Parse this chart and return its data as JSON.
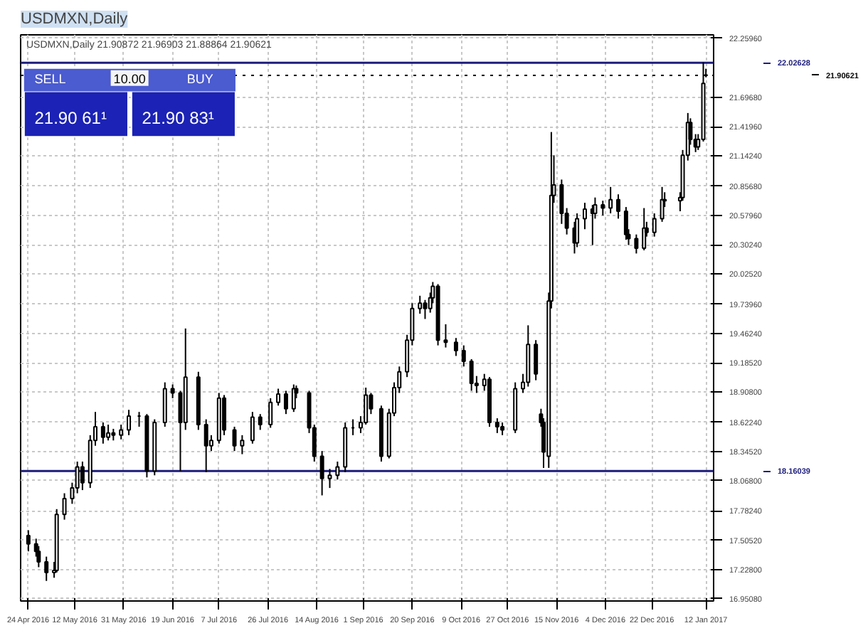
{
  "chart_data": {
    "type": "candlestick",
    "title": "USDMXN,Daily",
    "subtitle": "USDMXN,Daily  21.90872 21.96903 21.88864 21.90621",
    "annotations": [
      "SELL",
      "10.00",
      "BUY",
      "21.90 61¹",
      "21.90 83¹"
    ],
    "x": [
      "2016-04-24",
      "2016-04-27",
      "2016-04-28",
      "2016-05-01",
      "2016-05-04",
      "2016-05-05",
      "2016-05-08",
      "2016-05-11",
      "2016-05-13",
      "2016-05-15",
      "2016-05-18",
      "2016-05-20",
      "2016-05-23",
      "2016-05-25",
      "2016-05-27",
      "2016-05-30",
      "2016-06-02",
      "2016-06-06",
      "2016-06-09",
      "2016-06-12",
      "2016-06-16",
      "2016-06-19",
      "2016-06-22",
      "2016-06-24",
      "2016-06-29",
      "2016-07-02",
      "2016-07-04",
      "2016-07-07",
      "2016-07-09",
      "2016-07-13",
      "2016-07-16",
      "2016-07-20",
      "2016-07-23",
      "2016-07-27",
      "2016-07-30",
      "2016-08-02",
      "2016-08-05",
      "2016-08-06",
      "2016-08-11",
      "2016-08-13",
      "2016-08-16",
      "2016-08-19",
      "2016-08-22",
      "2016-08-25",
      "2016-08-28",
      "2016-08-31",
      "2016-09-02",
      "2016-09-04",
      "2016-09-08",
      "2016-09-11",
      "2016-09-13",
      "2016-09-15",
      "2016-09-18",
      "2016-09-20",
      "2016-09-23",
      "2016-09-25",
      "2016-09-27",
      "2016-09-28",
      "2016-09-30",
      "2016-10-03",
      "2016-10-07",
      "2016-10-10",
      "2016-10-13",
      "2016-10-15",
      "2016-10-18",
      "2016-10-20",
      "2016-10-23",
      "2016-10-25",
      "2016-10-30",
      "2016-11-02",
      "2016-11-04",
      "2016-11-07",
      "2016-11-09",
      "2016-11-10",
      "2016-11-12",
      "2016-11-13",
      "2016-11-14",
      "2016-11-17",
      "2016-11-19",
      "2016-11-22",
      "2016-11-23",
      "2016-11-26",
      "2016-11-29",
      "2016-11-30",
      "2016-12-03",
      "2016-12-06",
      "2016-12-09",
      "2016-12-12",
      "2016-12-13",
      "2016-12-16",
      "2016-12-19",
      "2016-12-20",
      "2016-12-23",
      "2016-12-26",
      "2016-12-27",
      "2017-01-02",
      "2017-01-03",
      "2017-01-05",
      "2017-01-06",
      "2017-01-08",
      "2017-01-09",
      "2017-01-11",
      "2017-01-12"
    ],
    "ohlc": [
      [
        17.55,
        17.6,
        17.4,
        17.47
      ],
      [
        17.47,
        17.52,
        17.35,
        17.4
      ],
      [
        17.4,
        17.45,
        17.25,
        17.3
      ],
      [
        17.3,
        17.35,
        17.12,
        17.2
      ],
      [
        17.2,
        17.3,
        17.15,
        17.22
      ],
      [
        17.22,
        17.8,
        17.2,
        17.75
      ],
      [
        17.75,
        17.95,
        17.7,
        17.9
      ],
      [
        17.9,
        18.05,
        17.85,
        18.0
      ],
      [
        18.0,
        18.25,
        17.95,
        18.2
      ],
      [
        18.2,
        18.25,
        17.98,
        18.05
      ],
      [
        18.05,
        18.5,
        18.0,
        18.45
      ],
      [
        18.45,
        18.72,
        18.4,
        18.58
      ],
      [
        18.58,
        18.62,
        18.42,
        18.48
      ],
      [
        18.48,
        18.6,
        18.45,
        18.52
      ],
      [
        18.52,
        18.56,
        18.45,
        18.5
      ],
      [
        18.5,
        18.6,
        18.46,
        18.55
      ],
      [
        18.55,
        18.74,
        18.5,
        18.68
      ],
      [
        18.68,
        18.72,
        18.58,
        18.68
      ],
      [
        18.68,
        18.7,
        18.1,
        18.16
      ],
      [
        18.16,
        18.65,
        18.12,
        18.62
      ],
      [
        18.62,
        19.0,
        18.58,
        18.94
      ],
      [
        18.94,
        18.98,
        18.85,
        18.9
      ],
      [
        18.9,
        18.92,
        18.16,
        18.62
      ],
      [
        18.62,
        19.51,
        18.55,
        19.05
      ],
      [
        19.05,
        19.1,
        18.55,
        18.6
      ],
      [
        18.6,
        18.65,
        18.15,
        18.4
      ],
      [
        18.4,
        18.5,
        18.35,
        18.45
      ],
      [
        18.45,
        18.9,
        18.42,
        18.85
      ],
      [
        18.85,
        18.88,
        18.5,
        18.55
      ],
      [
        18.55,
        18.58,
        18.35,
        18.4
      ],
      [
        18.4,
        18.5,
        18.32,
        18.45
      ],
      [
        18.45,
        18.72,
        18.42,
        18.67
      ],
      [
        18.67,
        18.7,
        18.55,
        18.6
      ],
      [
        18.6,
        18.85,
        18.57,
        18.81
      ],
      [
        18.81,
        18.94,
        18.78,
        18.89
      ],
      [
        18.89,
        18.92,
        18.7,
        18.75
      ],
      [
        18.75,
        18.98,
        18.72,
        18.94
      ],
      [
        18.94,
        18.97,
        18.85,
        18.9
      ],
      [
        18.9,
        18.92,
        18.52,
        18.57
      ],
      [
        18.57,
        18.6,
        18.25,
        18.3
      ],
      [
        18.3,
        18.35,
        17.93,
        18.09
      ],
      [
        18.09,
        18.18,
        18.0,
        18.12
      ],
      [
        18.12,
        18.25,
        18.08,
        18.2
      ],
      [
        18.2,
        18.62,
        18.15,
        18.57
      ],
      [
        18.57,
        18.65,
        18.5,
        18.57
      ],
      [
        18.57,
        18.68,
        18.52,
        18.62
      ],
      [
        18.62,
        18.95,
        18.6,
        18.88
      ],
      [
        18.88,
        18.9,
        18.7,
        18.75
      ],
      [
        18.75,
        18.78,
        18.25,
        18.3
      ],
      [
        18.3,
        18.75,
        18.28,
        18.71
      ],
      [
        18.71,
        19.0,
        18.68,
        18.95
      ],
      [
        18.95,
        19.15,
        18.9,
        19.1
      ],
      [
        19.1,
        19.45,
        19.05,
        19.4
      ],
      [
        19.4,
        19.75,
        19.35,
        19.7
      ],
      [
        19.7,
        19.82,
        19.65,
        19.75
      ],
      [
        19.75,
        19.78,
        19.6,
        19.7
      ],
      [
        19.7,
        19.85,
        19.66,
        19.8
      ],
      [
        19.8,
        19.95,
        19.75,
        19.91
      ],
      [
        19.91,
        19.93,
        19.35,
        19.4
      ],
      [
        19.4,
        19.55,
        19.33,
        19.38
      ],
      [
        19.38,
        19.42,
        19.25,
        19.3
      ],
      [
        19.3,
        19.35,
        19.15,
        19.2
      ],
      [
        19.2,
        19.22,
        18.92,
        18.99
      ],
      [
        18.99,
        19.06,
        18.9,
        18.97
      ],
      [
        18.97,
        19.08,
        18.92,
        19.03
      ],
      [
        19.03,
        19.05,
        18.58,
        18.62
      ],
      [
        18.62,
        18.66,
        18.52,
        18.58
      ],
      [
        18.58,
        18.62,
        18.5,
        18.55
      ],
      [
        18.55,
        19.0,
        18.52,
        18.94
      ],
      [
        18.94,
        19.08,
        18.9,
        19.0
      ],
      [
        19.0,
        19.54,
        18.96,
        19.36
      ],
      [
        19.36,
        19.4,
        19.02,
        19.08
      ],
      [
        18.7,
        18.75,
        18.58,
        18.62
      ],
      [
        18.62,
        18.66,
        18.19,
        18.34
      ],
      [
        18.3,
        19.85,
        18.19,
        19.77
      ],
      [
        19.77,
        21.37,
        19.7,
        20.77
      ],
      [
        20.77,
        21.15,
        20.7,
        20.87
      ],
      [
        20.87,
        20.92,
        20.5,
        20.6
      ],
      [
        20.6,
        20.65,
        20.4,
        20.46
      ],
      [
        20.46,
        20.52,
        20.22,
        20.32
      ],
      [
        20.32,
        20.6,
        20.28,
        20.55
      ],
      [
        20.55,
        20.7,
        20.45,
        20.64
      ],
      [
        20.64,
        20.68,
        20.3,
        20.6
      ],
      [
        20.6,
        20.75,
        20.55,
        20.68
      ],
      [
        20.68,
        20.72,
        20.58,
        20.65
      ],
      [
        20.65,
        20.85,
        20.6,
        20.73
      ],
      [
        20.73,
        20.78,
        20.55,
        20.62
      ],
      [
        20.62,
        20.66,
        20.35,
        20.4
      ],
      [
        20.4,
        20.45,
        20.3,
        20.36
      ],
      [
        20.36,
        20.4,
        20.22,
        20.27
      ],
      [
        20.27,
        20.65,
        20.25,
        20.46
      ],
      [
        20.46,
        20.52,
        20.38,
        20.42
      ],
      [
        20.42,
        20.6,
        20.38,
        20.55
      ],
      [
        20.55,
        20.85,
        20.52,
        20.73
      ],
      [
        20.73,
        20.8,
        20.66,
        20.72
      ],
      [
        20.72,
        20.8,
        20.62,
        20.75
      ],
      [
        20.75,
        21.2,
        20.72,
        21.15
      ],
      [
        21.15,
        21.55,
        21.1,
        21.46
      ],
      [
        21.46,
        21.5,
        21.25,
        21.3
      ],
      [
        21.3,
        21.35,
        21.18,
        21.23
      ],
      [
        21.23,
        21.35,
        21.2,
        21.3
      ],
      [
        21.3,
        22.03,
        21.28,
        21.83
      ],
      [
        21.90872,
        21.96903,
        21.88864,
        21.90621
      ]
    ],
    "xlim": [
      "2016-04-21",
      "2017-01-15"
    ],
    "ylim": [
      16.93,
      22.29
    ],
    "xticks": [
      {
        "value": "2016-04-24",
        "label": "24 Apr 2016"
      },
      {
        "value": "2016-05-12",
        "label": "12 May 2016"
      },
      {
        "value": "2016-05-31",
        "label": "31 May 2016"
      },
      {
        "value": "2016-06-19",
        "label": "19 Jun 2016"
      },
      {
        "value": "2016-07-07",
        "label": "7 Jul 2016"
      },
      {
        "value": "2016-07-26",
        "label": "26 Jul 2016"
      },
      {
        "value": "2016-08-14",
        "label": "14 Aug 2016"
      },
      {
        "value": "2016-09-01",
        "label": "1 Sep 2016"
      },
      {
        "value": "2016-09-20",
        "label": "20 Sep 2016"
      },
      {
        "value": "2016-10-09",
        "label": "9 Oct 2016"
      },
      {
        "value": "2016-10-27",
        "label": "27 Oct 2016"
      },
      {
        "value": "2016-11-15",
        "label": "15 Nov 2016"
      },
      {
        "value": "2016-12-04",
        "label": "4 Dec 2016"
      },
      {
        "value": "2016-12-22",
        "label": "22 Dec 2016"
      },
      {
        "value": "2017-01-12",
        "label": "12 Jan 2017"
      }
    ],
    "yticks": [
      {
        "value": 22.2596,
        "label": "22.25960"
      },
      {
        "value": 21.6968,
        "label": "21.69680"
      },
      {
        "value": 21.4196,
        "label": "21.41960"
      },
      {
        "value": 21.1424,
        "label": "21.14240"
      },
      {
        "value": 20.8568,
        "label": "20.85680"
      },
      {
        "value": 20.5796,
        "label": "20.57960"
      },
      {
        "value": 20.3024,
        "label": "20.30240"
      },
      {
        "value": 20.0252,
        "label": "20.02520"
      },
      {
        "value": 19.7396,
        "label": "19.73960"
      },
      {
        "value": 19.4624,
        "label": "19.46240"
      },
      {
        "value": 19.1852,
        "label": "19.18520"
      },
      {
        "value": 18.908,
        "label": "18.90800"
      },
      {
        "value": 18.6224,
        "label": "18.62240"
      },
      {
        "value": 18.3452,
        "label": "18.34520"
      },
      {
        "value": 18.068,
        "label": "18.06800"
      },
      {
        "value": 17.7824,
        "label": "17.78240"
      },
      {
        "value": 17.5052,
        "label": "17.50520"
      },
      {
        "value": 17.228,
        "label": "17.22800"
      },
      {
        "value": 16.9508,
        "label": "16.95080"
      }
    ],
    "ref_lines": [
      {
        "axis": "y",
        "value": 22.02628,
        "label": "22.02628",
        "color": "#1c1c7c",
        "line_style": "solid"
      },
      {
        "axis": "y",
        "value": 21.90621,
        "label": "21.90621",
        "color": "#000000",
        "line_style": "dotted"
      },
      {
        "axis": "y",
        "value": 18.16039,
        "label": "18.16039",
        "color": "#1c1c7c",
        "line_style": "solid"
      }
    ],
    "grid": true
  }
}
